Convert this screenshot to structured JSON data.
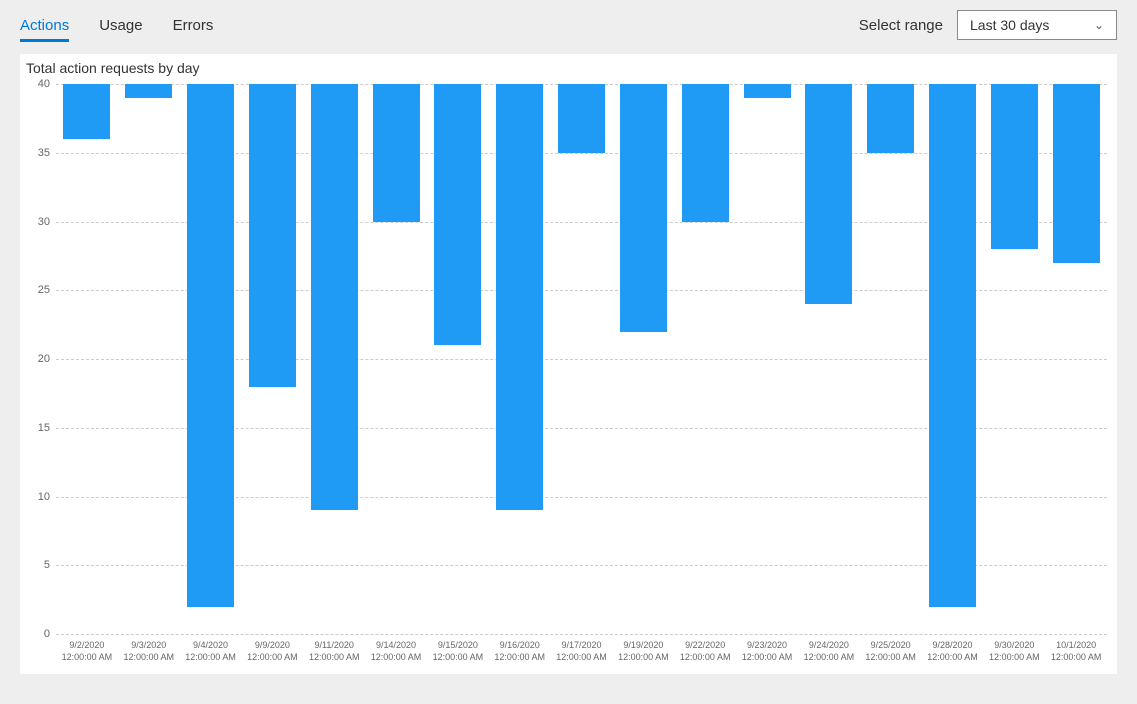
{
  "header": {
    "tabs": [
      {
        "label": "Actions",
        "active": true
      },
      {
        "label": "Usage",
        "active": false
      },
      {
        "label": "Errors",
        "active": false
      }
    ],
    "range_label": "Select range",
    "range_value": "Last 30 days"
  },
  "chart": {
    "type": "bar",
    "title": "Total action requests by day",
    "bar_color": "#1f9bf5",
    "background_color": "#ffffff",
    "grid_color": "#cccccc",
    "title_fontsize": 14,
    "ytick_fontsize": 11,
    "xtick_fontsize": 9,
    "bar_width": 0.76,
    "ylim": [
      0,
      40
    ],
    "ytick_step": 5,
    "yticks": [
      0,
      5,
      10,
      15,
      20,
      25,
      30,
      35,
      40
    ],
    "categories": [
      "9/2/2020\n12:00:00 AM",
      "9/3/2020\n12:00:00 AM",
      "9/4/2020\n12:00:00 AM",
      "9/9/2020\n12:00:00 AM",
      "9/11/2020\n12:00:00 AM",
      "9/14/2020\n12:00:00 AM",
      "9/15/2020\n12:00:00 AM",
      "9/16/2020\n12:00:00 AM",
      "9/17/2020\n12:00:00 AM",
      "9/19/2020\n12:00:00 AM",
      "9/22/2020\n12:00:00 AM",
      "9/23/2020\n12:00:00 AM",
      "9/24/2020\n12:00:00 AM",
      "9/25/2020\n12:00:00 AM",
      "9/28/2020\n12:00:00 AM",
      "9/30/2020\n12:00:00 AM",
      "10/1/2020\n12:00:00 AM"
    ],
    "values": [
      4,
      1,
      38,
      22,
      31,
      10,
      19,
      31,
      5,
      18,
      10,
      1,
      16,
      5,
      38,
      12,
      13
    ]
  }
}
